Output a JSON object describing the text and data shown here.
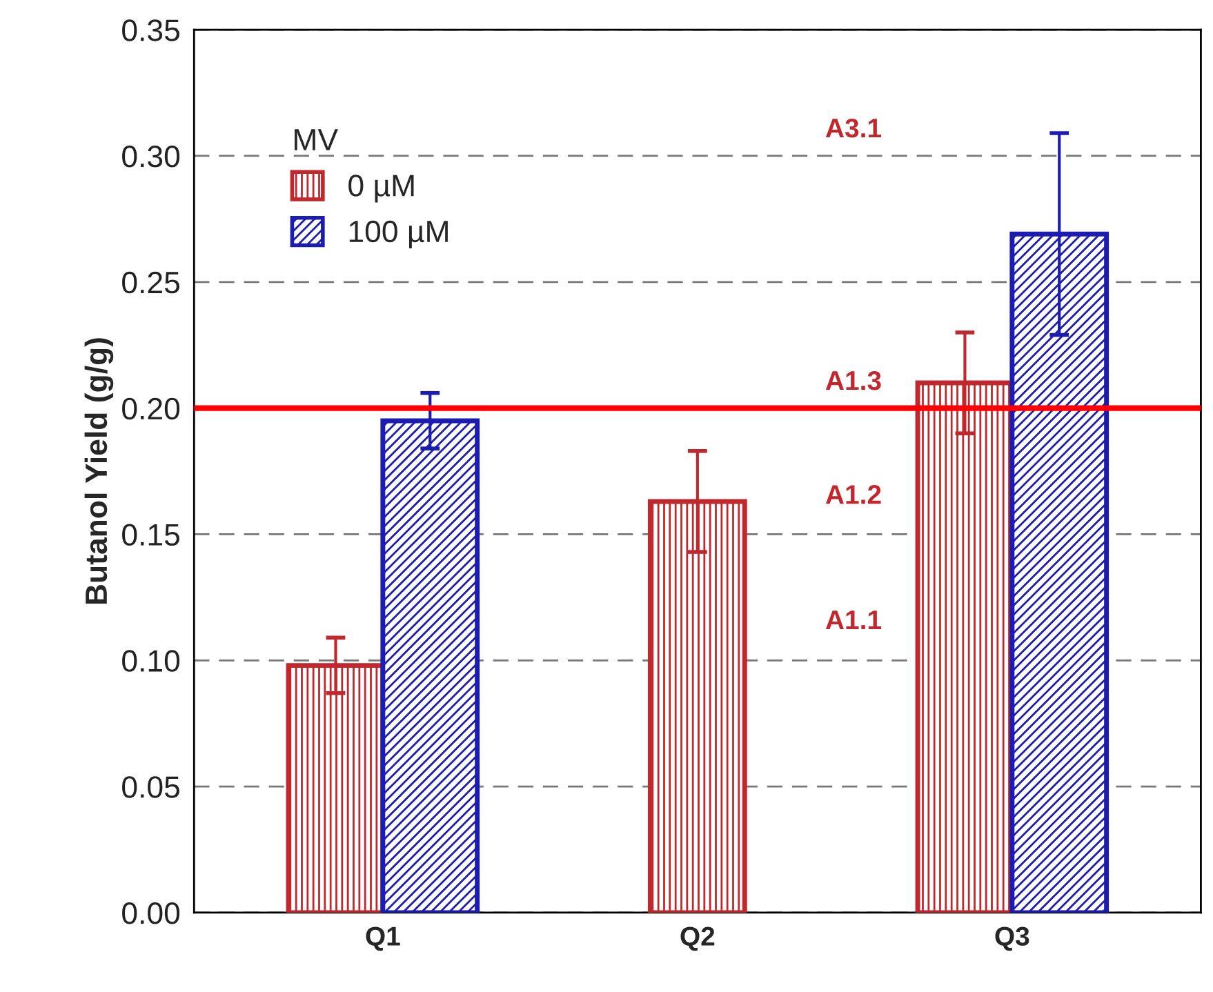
{
  "chart_data": {
    "type": "bar",
    "ylabel": "Butanol Yield (g/g)",
    "legend_title": "MV",
    "legend": "top left",
    "categories": [
      "Q1",
      "Q2",
      "Q3"
    ],
    "series": [
      {
        "name": "0 µM",
        "color": "#c0282d",
        "values": [
          0.098,
          0.163,
          0.21
        ],
        "errors": [
          0.011,
          0.02,
          0.02
        ]
      },
      {
        "name": "100 µM",
        "color": "#1c1cb0",
        "values": [
          0.195,
          null,
          0.269
        ],
        "errors": [
          0.011,
          null,
          0.04
        ]
      }
    ],
    "ylim": [
      0,
      0.35
    ],
    "yticks": [
      {
        "value": 0,
        "label": "0.00"
      },
      {
        "value": 0.05,
        "label": "0.05"
      },
      {
        "value": 0.1,
        "label": "0.10"
      },
      {
        "value": 0.15,
        "label": "0.15"
      },
      {
        "value": 0.2,
        "label": "0.20"
      },
      {
        "value": 0.25,
        "label": "0.25"
      },
      {
        "value": 0.3,
        "label": "0.30"
      },
      {
        "value": 0.35,
        "label": "0.35"
      }
    ],
    "grid": "y",
    "ref_lines": [
      {
        "axis": "y",
        "value": 0.2,
        "color": "#ff0000",
        "line_style": "solid"
      }
    ],
    "annotations": [
      "A3.1",
      "A1.3",
      "A1.2",
      "A1.1"
    ]
  }
}
